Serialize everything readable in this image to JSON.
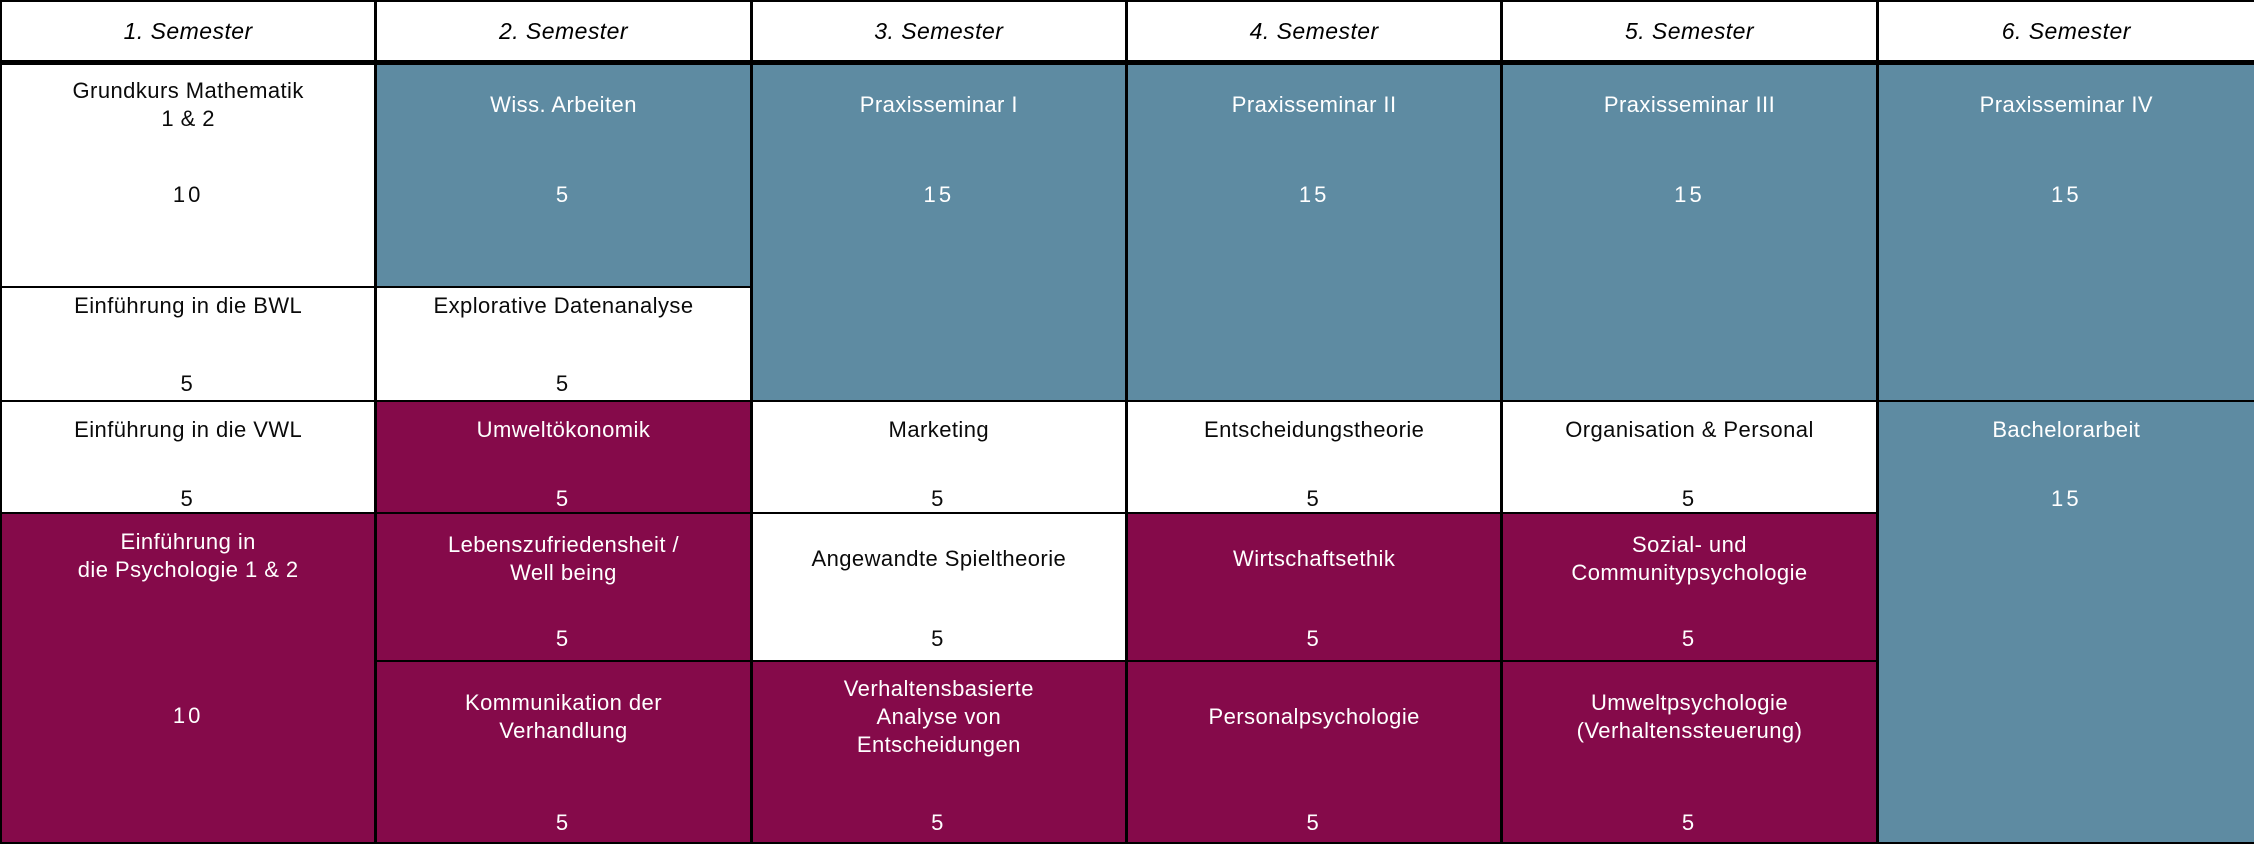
{
  "colors": {
    "teal": "#5E8BA2",
    "maroon": "#850A4A",
    "white_cell": "#FFFFFF",
    "border": "#000000"
  },
  "headers": [
    {
      "label": "1. Semester"
    },
    {
      "label": "2. Semester"
    },
    {
      "label": "3. Semester"
    },
    {
      "label": "4. Semester"
    },
    {
      "label": "5. Semester"
    },
    {
      "label": "6. Semester"
    }
  ],
  "cells": [
    {
      "title": "Grundkurs Mathematik\n1 & 2",
      "credits": "10"
    },
    {
      "title": "Einführung in die BWL",
      "credits": "5"
    },
    {
      "title": "Einführung in die VWL",
      "credits": "5"
    },
    {
      "title": "Einführung in\ndie Psychologie 1 & 2",
      "credits": "10"
    },
    {
      "title": "Wiss. Arbeiten",
      "credits": "5"
    },
    {
      "title": "Explorative Datenanalyse",
      "credits": "5"
    },
    {
      "title": "Umweltökonomik",
      "credits": "5"
    },
    {
      "title": "Lebenszufriedensheit /\nWell being",
      "credits": "5"
    },
    {
      "title": "Kommunikation der\nVerhandlung",
      "credits": "5"
    },
    {
      "title": "Praxisseminar I",
      "credits": "15"
    },
    {
      "title": "Marketing",
      "credits": "5"
    },
    {
      "title": "Angewandte Spieltheorie",
      "credits": "5"
    },
    {
      "title": "Verhaltensbasierte\nAnalyse von\nEntscheidungen",
      "credits": "5"
    },
    {
      "title": "Praxisseminar II",
      "credits": "15"
    },
    {
      "title": "Entscheidungstheorie",
      "credits": "5"
    },
    {
      "title": "Wirtschaftsethik",
      "credits": "5"
    },
    {
      "title": "Personalpsychologie",
      "credits": "5"
    },
    {
      "title": "Praxisseminar III",
      "credits": "15"
    },
    {
      "title": "Organisation & Personal",
      "credits": "5"
    },
    {
      "title": "Sozial- und\nCommunitypsychologie",
      "credits": "5"
    },
    {
      "title": "Umweltpsychologie\n(Verhaltenssteuerung)",
      "credits": "5"
    },
    {
      "title": "Praxisseminar IV",
      "credits": "15"
    },
    {
      "title": "Bachelorarbeit",
      "credits": "15"
    }
  ]
}
